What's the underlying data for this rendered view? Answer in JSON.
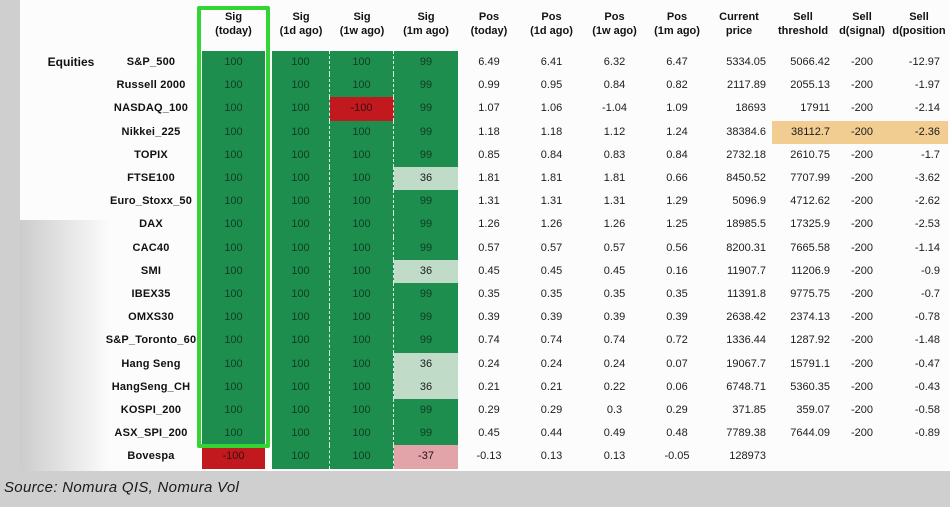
{
  "colors": {
    "frame_green": "#35d435",
    "signal_green": "#1e8e4e",
    "signal_light_green": "#c0dcc8",
    "signal_red": "#c2191f",
    "signal_pink": "#e2a4a9",
    "highlight_orange": "#f2cd92",
    "page_background": "#cfcfcf",
    "panel_background": "#fcfcfc"
  },
  "table": {
    "group_label": "Equities",
    "columns": [
      {
        "key": "sig-today",
        "l1": "Sig",
        "l2": "(today)"
      },
      {
        "key": "sig-1d-ago",
        "l1": "Sig",
        "l2": "(1d ago)"
      },
      {
        "key": "sig-1w-ago",
        "l1": "Sig",
        "l2": "(1w ago)"
      },
      {
        "key": "sig-1m-ago",
        "l1": "Sig",
        "l2": "(1m ago)"
      },
      {
        "key": "pos-today",
        "l1": "Pos",
        "l2": "(today)"
      },
      {
        "key": "pos-1d-ago",
        "l1": "Pos",
        "l2": "(1d ago)"
      },
      {
        "key": "pos-1w-ago",
        "l1": "Pos",
        "l2": "(1w ago)"
      },
      {
        "key": "pos-1m-ago",
        "l1": "Pos",
        "l2": "(1m ago)"
      },
      {
        "key": "current-price",
        "l1": "Current",
        "l2": "price"
      },
      {
        "key": "sell-threshold",
        "l1": "Sell",
        "l2": "threshold"
      },
      {
        "key": "sell-d-signal",
        "l1": "Sell",
        "l2": "d(signal)"
      },
      {
        "key": "sell-d-position",
        "l1": "Sell",
        "l2": "d(position"
      }
    ],
    "rows": [
      {
        "name": "S&P_500",
        "sig": [
          "100",
          "100",
          "100",
          "99"
        ],
        "sig_colors": [
          "g",
          "g",
          "g",
          "g"
        ],
        "pos": [
          "6.49",
          "6.41",
          "6.32",
          "6.47"
        ],
        "current_price": "5334.05",
        "sell_threshold": "5066.42",
        "sell_d_signal": "-200",
        "sell_d_position": "-12.97",
        "hl": false
      },
      {
        "name": "Russell 2000",
        "sig": [
          "100",
          "100",
          "100",
          "99"
        ],
        "sig_colors": [
          "g",
          "g",
          "g",
          "g"
        ],
        "pos": [
          "0.99",
          "0.95",
          "0.84",
          "0.82"
        ],
        "current_price": "2117.89",
        "sell_threshold": "2055.13",
        "sell_d_signal": "-200",
        "sell_d_position": "-1.97",
        "hl": false
      },
      {
        "name": "NASDAQ_100",
        "sig": [
          "100",
          "100",
          "-100",
          "99"
        ],
        "sig_colors": [
          "g",
          "g",
          "r",
          "g"
        ],
        "pos": [
          "1.07",
          "1.06",
          "-1.04",
          "1.09"
        ],
        "current_price": "18693",
        "sell_threshold": "17911",
        "sell_d_signal": "-200",
        "sell_d_position": "-2.14",
        "hl": false
      },
      {
        "name": "Nikkei_225",
        "sig": [
          "100",
          "100",
          "100",
          "99"
        ],
        "sig_colors": [
          "g",
          "g",
          "g",
          "g"
        ],
        "pos": [
          "1.18",
          "1.18",
          "1.12",
          "1.24"
        ],
        "current_price": "38384.6",
        "sell_threshold": "38112.7",
        "sell_d_signal": "-200",
        "sell_d_position": "-2.36",
        "hl": true
      },
      {
        "name": "TOPIX",
        "sig": [
          "100",
          "100",
          "100",
          "99"
        ],
        "sig_colors": [
          "g",
          "g",
          "g",
          "g"
        ],
        "pos": [
          "0.85",
          "0.84",
          "0.83",
          "0.84"
        ],
        "current_price": "2732.18",
        "sell_threshold": "2610.75",
        "sell_d_signal": "-200",
        "sell_d_position": "-1.7",
        "hl": false
      },
      {
        "name": "FTSE100",
        "sig": [
          "100",
          "100",
          "100",
          "36"
        ],
        "sig_colors": [
          "g",
          "g",
          "g",
          "lg"
        ],
        "pos": [
          "1.81",
          "1.81",
          "1.81",
          "0.66"
        ],
        "current_price": "8450.52",
        "sell_threshold": "7707.99",
        "sell_d_signal": "-200",
        "sell_d_position": "-3.62",
        "hl": false
      },
      {
        "name": "Euro_Stoxx_50",
        "sig": [
          "100",
          "100",
          "100",
          "99"
        ],
        "sig_colors": [
          "g",
          "g",
          "g",
          "g"
        ],
        "pos": [
          "1.31",
          "1.31",
          "1.31",
          "1.29"
        ],
        "current_price": "5096.9",
        "sell_threshold": "4712.62",
        "sell_d_signal": "-200",
        "sell_d_position": "-2.62",
        "hl": false
      },
      {
        "name": "DAX",
        "sig": [
          "100",
          "100",
          "100",
          "99"
        ],
        "sig_colors": [
          "g",
          "g",
          "g",
          "g"
        ],
        "pos": [
          "1.26",
          "1.26",
          "1.26",
          "1.25"
        ],
        "current_price": "18985.5",
        "sell_threshold": "17325.9",
        "sell_d_signal": "-200",
        "sell_d_position": "-2.53",
        "hl": false
      },
      {
        "name": "CAC40",
        "sig": [
          "100",
          "100",
          "100",
          "99"
        ],
        "sig_colors": [
          "g",
          "g",
          "g",
          "g"
        ],
        "pos": [
          "0.57",
          "0.57",
          "0.57",
          "0.56"
        ],
        "current_price": "8200.31",
        "sell_threshold": "7665.58",
        "sell_d_signal": "-200",
        "sell_d_position": "-1.14",
        "hl": false
      },
      {
        "name": "SMI",
        "sig": [
          "100",
          "100",
          "100",
          "36"
        ],
        "sig_colors": [
          "g",
          "g",
          "g",
          "lg"
        ],
        "pos": [
          "0.45",
          "0.45",
          "0.45",
          "0.16"
        ],
        "current_price": "11907.7",
        "sell_threshold": "11206.9",
        "sell_d_signal": "-200",
        "sell_d_position": "-0.9",
        "hl": false
      },
      {
        "name": "IBEX35",
        "sig": [
          "100",
          "100",
          "100",
          "99"
        ],
        "sig_colors": [
          "g",
          "g",
          "g",
          "g"
        ],
        "pos": [
          "0.35",
          "0.35",
          "0.35",
          "0.35"
        ],
        "current_price": "11391.8",
        "sell_threshold": "9775.75",
        "sell_d_signal": "-200",
        "sell_d_position": "-0.7",
        "hl": false
      },
      {
        "name": "OMXS30",
        "sig": [
          "100",
          "100",
          "100",
          "99"
        ],
        "sig_colors": [
          "g",
          "g",
          "g",
          "g"
        ],
        "pos": [
          "0.39",
          "0.39",
          "0.39",
          "0.39"
        ],
        "current_price": "2638.42",
        "sell_threshold": "2374.13",
        "sell_d_signal": "-200",
        "sell_d_position": "-0.78",
        "hl": false
      },
      {
        "name": "S&P_Toronto_60",
        "sig": [
          "100",
          "100",
          "100",
          "99"
        ],
        "sig_colors": [
          "g",
          "g",
          "g",
          "g"
        ],
        "pos": [
          "0.74",
          "0.74",
          "0.74",
          "0.72"
        ],
        "current_price": "1336.44",
        "sell_threshold": "1287.92",
        "sell_d_signal": "-200",
        "sell_d_position": "-1.48",
        "hl": false
      },
      {
        "name": "Hang Seng",
        "sig": [
          "100",
          "100",
          "100",
          "36"
        ],
        "sig_colors": [
          "g",
          "g",
          "g",
          "lg"
        ],
        "pos": [
          "0.24",
          "0.24",
          "0.24",
          "0.07"
        ],
        "current_price": "19067.7",
        "sell_threshold": "15791.1",
        "sell_d_signal": "-200",
        "sell_d_position": "-0.47",
        "hl": false
      },
      {
        "name": "HangSeng_CH",
        "sig": [
          "100",
          "100",
          "100",
          "36"
        ],
        "sig_colors": [
          "g",
          "g",
          "g",
          "lg"
        ],
        "pos": [
          "0.21",
          "0.21",
          "0.22",
          "0.06"
        ],
        "current_price": "6748.71",
        "sell_threshold": "5360.35",
        "sell_d_signal": "-200",
        "sell_d_position": "-0.43",
        "hl": false
      },
      {
        "name": "KOSPI_200",
        "sig": [
          "100",
          "100",
          "100",
          "99"
        ],
        "sig_colors": [
          "g",
          "g",
          "g",
          "g"
        ],
        "pos": [
          "0.29",
          "0.29",
          "0.3",
          "0.29"
        ],
        "current_price": "371.85",
        "sell_threshold": "359.07",
        "sell_d_signal": "-200",
        "sell_d_position": "-0.58",
        "hl": false
      },
      {
        "name": "ASX_SPI_200",
        "sig": [
          "100",
          "100",
          "100",
          "99"
        ],
        "sig_colors": [
          "g",
          "g",
          "g",
          "g"
        ],
        "pos": [
          "0.45",
          "0.44",
          "0.49",
          "0.48"
        ],
        "current_price": "7789.38",
        "sell_threshold": "7644.09",
        "sell_d_signal": "-200",
        "sell_d_position": "-0.89",
        "hl": false
      },
      {
        "name": "Bovespa",
        "sig": [
          "-100",
          "100",
          "100",
          "-37"
        ],
        "sig_colors": [
          "r",
          "g",
          "g",
          "p"
        ],
        "pos": [
          "-0.13",
          "0.13",
          "0.13",
          "-0.05"
        ],
        "current_price": "128973",
        "sell_threshold": "",
        "sell_d_signal": "",
        "sell_d_position": "",
        "hl": false
      }
    ]
  },
  "footer": {
    "source": "Source: Nomura QIS, Nomura Vol"
  }
}
